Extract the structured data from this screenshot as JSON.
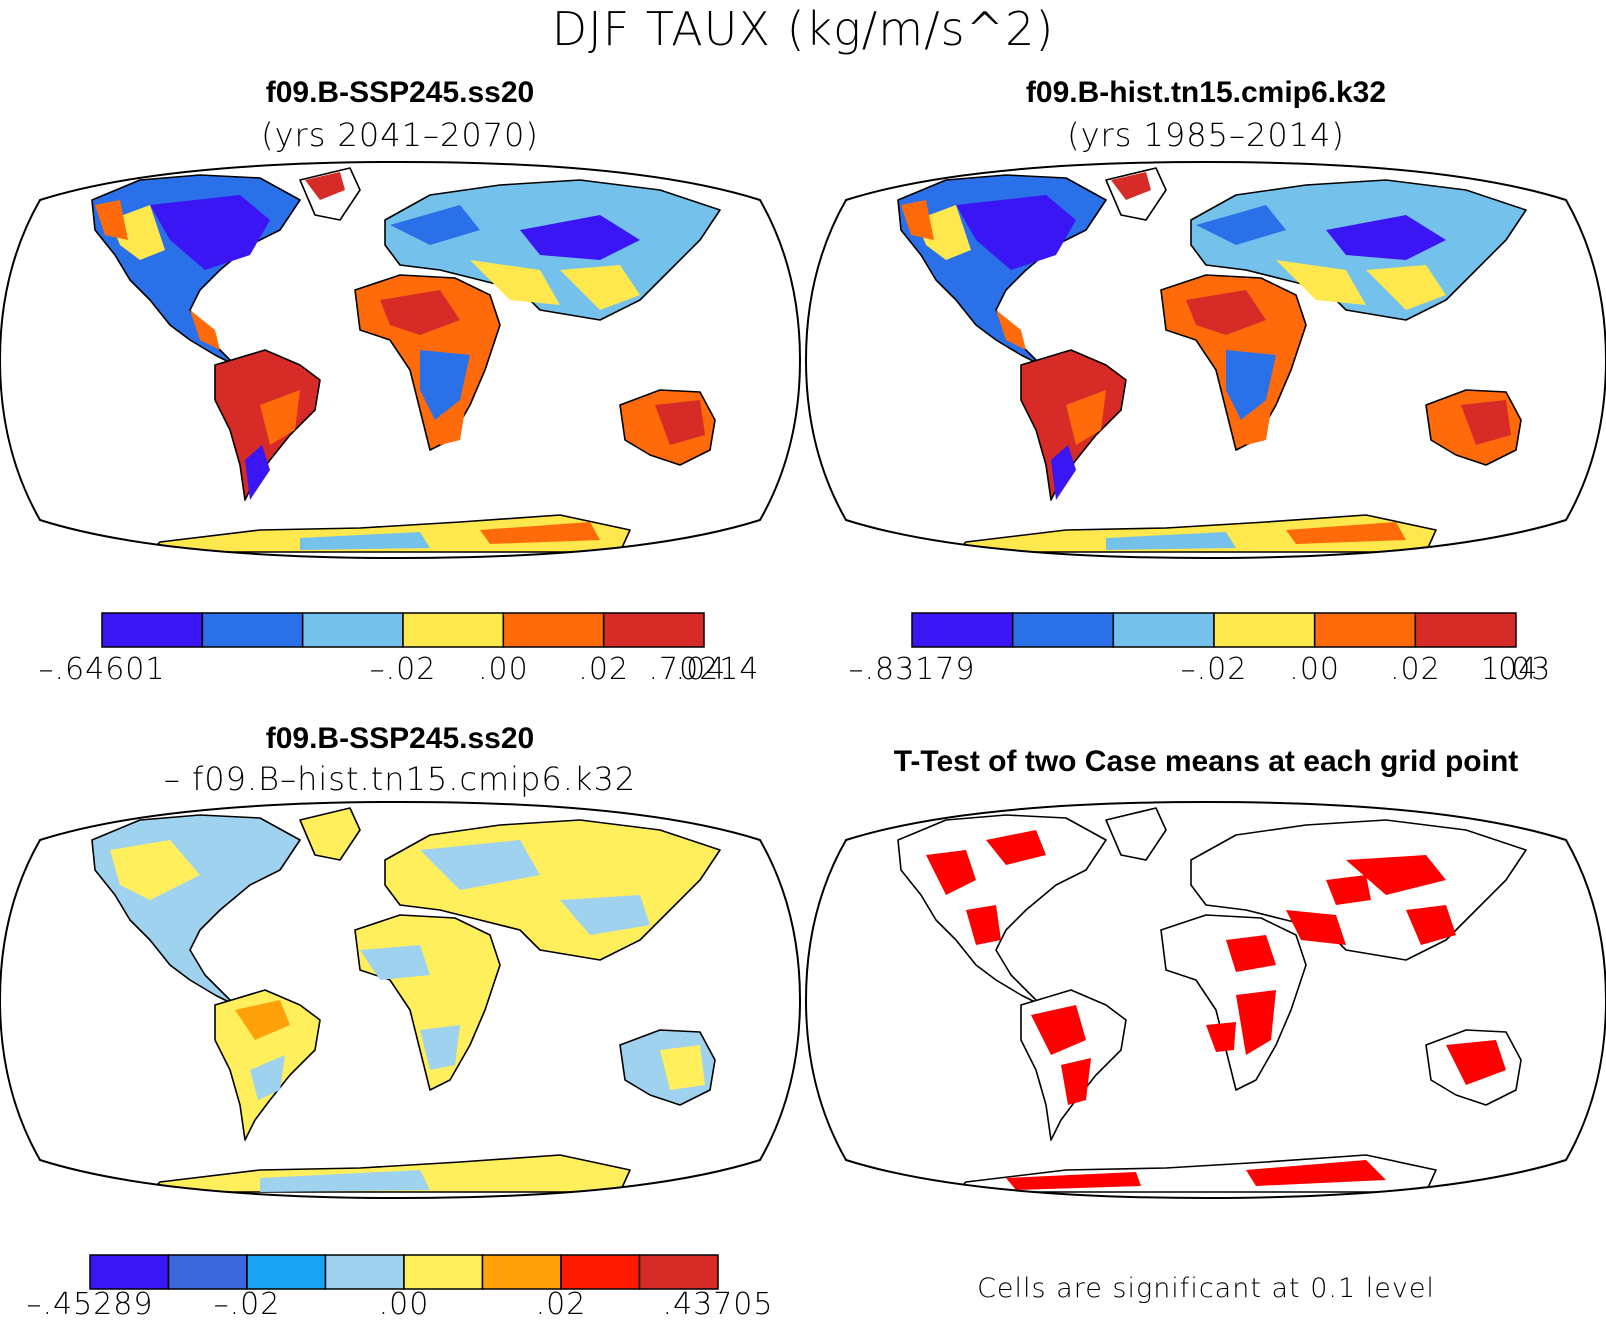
{
  "figure": {
    "title": "DJF TAUX (kg/m/s^2)"
  },
  "panels": {
    "top_left": {
      "title": "f09.B-SSP245.ss20",
      "subtitle": "(yrs 2041–2070)"
    },
    "top_right": {
      "title": "f09.B-hist.tn15.cmip6.k32",
      "subtitle": "(yrs 1985–2014)"
    },
    "bottom_left": {
      "title": "f09.B-SSP245.ss20",
      "subtitle": "– f09.B–hist.tn15.cmip6.k32"
    },
    "bottom_right": {
      "title": "T-Test of two Case means at each grid point",
      "note": "Cells are significant at 0.1 level",
      "significance_color": "#ff0000"
    }
  },
  "colorbars": {
    "top_left": {
      "colors": [
        "#3a16f5",
        "#2a70e8",
        "#74c2ec",
        "#ffe74e",
        "#ff6a0a",
        "#d62b26"
      ],
      "labels": [
        "–.64601",
        "–.02",
        ".00",
        ".02",
        ".04",
        ".70214"
      ]
    },
    "top_right": {
      "colors": [
        "#3a16f5",
        "#2a70e8",
        "#74c2ec",
        "#ffe74e",
        "#ff6a0a",
        "#d62b26"
      ],
      "labels": [
        "–.83179",
        "–.02",
        ".00",
        ".02",
        ".04",
        "1.03"
      ]
    },
    "bottom_left": {
      "colors": [
        "#3a16f5",
        "#3b66dc",
        "#1aa3f2",
        "#9fd2ef",
        "#ffef5c",
        "#ffa20a",
        "#ff1a00",
        "#d62b26"
      ],
      "labels": [
        "–.45289",
        "–.02",
        ".00",
        ".02",
        ".43705"
      ]
    }
  },
  "map_colors": {
    "top": {
      "north_america": "#2a70e8",
      "canada_east": "#3a16f5",
      "sahara": "#ff6a0a",
      "amazon": "#d62b26",
      "africa_south": "#2a70e8",
      "australia": "#ff6a0a",
      "eurasia": "#74c2ec",
      "antarctica": "#ffe74e"
    },
    "diff": {
      "land_a": "#9fd2ef",
      "land_b": "#ffef5c",
      "hotspot": "#ffa20a"
    }
  }
}
